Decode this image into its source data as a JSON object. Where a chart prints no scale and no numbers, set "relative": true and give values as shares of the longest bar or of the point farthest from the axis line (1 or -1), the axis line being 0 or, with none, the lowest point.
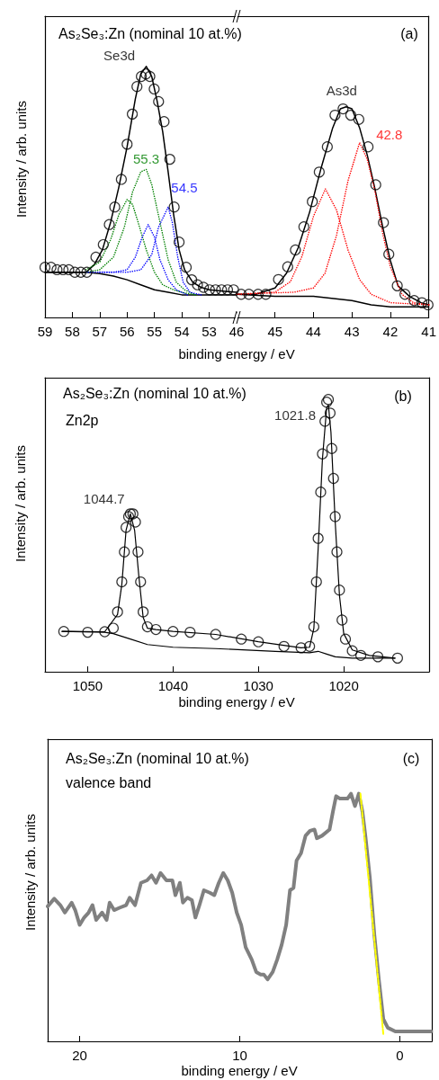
{
  "chart_data": [
    {
      "type": "line",
      "title": "As₂Se₃:Zn (nominal 10 at.%)",
      "xlabel": "binding energy / eV",
      "ylabel": "Intensity / arb. units",
      "relative": true,
      "xlim": [
        59,
        52
      ],
      "xticks": [
        59,
        58,
        57,
        56,
        55,
        54,
        53
      ],
      "annotations": [
        {
          "text": "Se3d",
          "x": 55.3,
          "y": 1.0
        },
        {
          "text": "55.3",
          "x": 55.3,
          "y": 0.59
        },
        {
          "text": "54.5",
          "x": 54.5,
          "y": 0.44
        }
      ],
      "series": [
        {
          "color": "#008000",
          "line_style": "dotted",
          "x": [
            57.5,
            57,
            56.6,
            56.3,
            56.0,
            55.8,
            55.6,
            55.3,
            55.0,
            54.7,
            54.3,
            54.0,
            53.5
          ],
          "values": [
            0.19,
            0.22,
            0.31,
            0.41,
            0.47,
            0.45,
            0.38,
            0.27,
            0.18,
            0.13,
            0.11,
            0.1,
            0.09
          ]
        },
        {
          "color": "#008000",
          "line_style": "dotted",
          "x": [
            57.5,
            57,
            56.5,
            56.1,
            55.8,
            55.5,
            55.3,
            55.1,
            54.8,
            54.5,
            54.2,
            53.9,
            53.5
          ],
          "values": [
            0.18,
            0.19,
            0.24,
            0.36,
            0.5,
            0.58,
            0.59,
            0.53,
            0.38,
            0.23,
            0.14,
            0.11,
            0.09
          ]
        },
        {
          "color": "#0000ff",
          "line_style": "dotted",
          "x": [
            57.5,
            56.5,
            56.0,
            55.7,
            55.45,
            55.23,
            55.0,
            54.8,
            54.5,
            54.2,
            53.8
          ],
          "values": [
            0.18,
            0.18,
            0.19,
            0.24,
            0.32,
            0.37,
            0.32,
            0.23,
            0.15,
            0.11,
            0.09
          ]
        },
        {
          "color": "#0000ff",
          "line_style": "dotted",
          "x": [
            57.0,
            56.0,
            55.5,
            55.1,
            54.85,
            54.5,
            54.35,
            54.15,
            53.95,
            53.7,
            53.3
          ],
          "values": [
            0.18,
            0.18,
            0.19,
            0.25,
            0.36,
            0.44,
            0.38,
            0.24,
            0.14,
            0.1,
            0.09
          ]
        },
        {
          "color": "#000000",
          "x": [
            59,
            57.5,
            57,
            56.5,
            56,
            55.5,
            55,
            54.5,
            54,
            53,
            52
          ],
          "values": [
            0.18,
            0.18,
            0.175,
            0.165,
            0.15,
            0.13,
            0.11,
            0.1,
            0.09,
            0.09,
            0.09
          ]
        },
        {
          "color": "#000000",
          "x": [
            59,
            58,
            57.5,
            57.2,
            56.9,
            56.6,
            56.3,
            56.0,
            55.7,
            55.5,
            55.3,
            55.1,
            54.9,
            54.7,
            54.5,
            54.3,
            54.1,
            53.9,
            53.6,
            53.3,
            53.0,
            52.5,
            52.0
          ],
          "values": [
            0.18,
            0.18,
            0.18,
            0.21,
            0.27,
            0.38,
            0.52,
            0.68,
            0.87,
            0.97,
            1.0,
            0.96,
            0.86,
            0.74,
            0.58,
            0.41,
            0.27,
            0.19,
            0.14,
            0.12,
            0.11,
            0.105,
            0.1
          ]
        },
        {
          "type": "scatter",
          "marker": "circle",
          "color": "#000000",
          "x": [
            59.0,
            58.78,
            58.56,
            58.34,
            58.13,
            57.91,
            57.69,
            57.47,
            57.14,
            56.87,
            56.65,
            56.45,
            56.21,
            56.0,
            55.81,
            55.64,
            55.48,
            55.31,
            55.17,
            55.01,
            54.85,
            54.65,
            54.44,
            54.28,
            54.1,
            53.84,
            53.64,
            53.43,
            53.21,
            52.99,
            52.77,
            52.55,
            52.33,
            52.11
          ],
          "values": [
            0.2,
            0.2,
            0.19,
            0.19,
            0.19,
            0.18,
            0.18,
            0.18,
            0.24,
            0.29,
            0.37,
            0.44,
            0.55,
            0.69,
            0.81,
            0.92,
            0.96,
            0.97,
            0.96,
            0.91,
            0.86,
            0.78,
            0.63,
            0.44,
            0.3,
            0.2,
            0.15,
            0.13,
            0.12,
            0.11,
            0.11,
            0.11,
            0.11,
            0.11
          ]
        }
      ]
    },
    {
      "type": "line",
      "relative": true,
      "xlim": [
        46,
        41
      ],
      "xticks": [
        46,
        45,
        44,
        43,
        42,
        41
      ],
      "annotations": [
        "(a)",
        {
          "text": "As3d",
          "x": 43.15,
          "y": 1.0
        },
        {
          "text": "42.8",
          "x": 42.8,
          "y": 0.83
        }
      ],
      "series": [
        {
          "color": "#ff0000",
          "line_style": "dotted",
          "x": [
            46,
            45,
            44.6,
            44.3,
            44.0,
            43.69,
            43.4,
            43.1,
            42.8,
            42.5,
            42,
            41
          ],
          "values": [
            0.11,
            0.12,
            0.17,
            0.29,
            0.48,
            0.61,
            0.51,
            0.32,
            0.18,
            0.11,
            0.07,
            0.06
          ]
        },
        {
          "color": "#ff0000",
          "line_style": "dotted",
          "x": [
            46,
            44.5,
            44,
            43.7,
            43.4,
            43.1,
            42.8,
            42.6,
            42.4,
            42.2,
            42.0,
            41.7,
            41.4,
            41
          ],
          "values": [
            0.11,
            0.12,
            0.14,
            0.21,
            0.39,
            0.65,
            0.83,
            0.75,
            0.6,
            0.4,
            0.24,
            0.11,
            0.07,
            0.06
          ]
        },
        {
          "color": "#000000",
          "x": [
            46,
            45,
            44,
            43,
            42.5,
            42,
            41
          ],
          "values": [
            0.11,
            0.1,
            0.1,
            0.08,
            0.06,
            0.05,
            0.05
          ]
        },
        {
          "color": "#000000",
          "x": [
            46,
            45.5,
            45,
            44.7,
            44.4,
            44.1,
            43.8,
            43.5,
            43.3,
            43.15,
            43.0,
            42.8,
            42.6,
            42.4,
            42.2,
            42.0,
            41.8,
            41.5,
            41.2,
            41
          ],
          "values": [
            0.11,
            0.11,
            0.14,
            0.21,
            0.33,
            0.5,
            0.71,
            0.9,
            0.99,
            1.0,
            0.99,
            0.9,
            0.77,
            0.61,
            0.43,
            0.27,
            0.15,
            0.1,
            0.07,
            0.06
          ]
        },
        {
          "type": "scatter",
          "marker": "circle",
          "color": "#000000",
          "x": [
            45.88,
            45.68,
            45.44,
            45.24,
            44.91,
            44.67,
            44.47,
            44.25,
            44.03,
            43.85,
            43.64,
            43.44,
            43.23,
            43.03,
            42.82,
            42.58,
            42.38,
            42.18,
            42.04,
            41.82,
            41.62,
            41.38,
            41.18,
            41.02
          ],
          "values": [
            0.11,
            0.11,
            0.11,
            0.11,
            0.18,
            0.24,
            0.32,
            0.43,
            0.55,
            0.69,
            0.81,
            0.96,
            0.99,
            0.96,
            0.94,
            0.81,
            0.63,
            0.45,
            0.3,
            0.15,
            0.11,
            0.08,
            0.07,
            0.06
          ]
        }
      ]
    },
    {
      "type": "line",
      "title": "As₂Se₃:Zn (nominal 10 at.%)",
      "xlabel": "binding energy / eV",
      "ylabel": "Intensity / arb. units",
      "relative": true,
      "xlim": [
        1055,
        1010
      ],
      "xticks": [
        1050,
        1040,
        1030,
        1020
      ],
      "annotations": [
        "Zn2p",
        "(b)",
        {
          "text": "1044.7",
          "x": 1044.7,
          "y": 0.58
        },
        {
          "text": "1021.8",
          "x": 1021.8,
          "y": 1.0
        }
      ],
      "series": [
        {
          "color": "#000000",
          "x": [
            1053,
            1048,
            1047,
            1046,
            1045,
            1043,
            1040,
            1035,
            1028,
            1024,
            1023,
            1022,
            1021,
            1019,
            1014
          ],
          "values": [
            0.148,
            0.145,
            0.14,
            0.13,
            0.12,
            0.1,
            0.09,
            0.085,
            0.075,
            0.07,
            0.075,
            0.065,
            0.055,
            0.05,
            0.05
          ]
        },
        {
          "color": "#000000",
          "x": [
            1053,
            1048,
            1046.5,
            1046,
            1045.5,
            1045,
            1044.5,
            1044,
            1043.5,
            1043,
            1042,
            1040,
            1035,
            1030,
            1025,
            1024,
            1023.5,
            1023,
            1022.5,
            1022,
            1021.8,
            1021.5,
            1021,
            1020.5,
            1020,
            1019,
            1017,
            1014
          ],
          "values": [
            0.148,
            0.147,
            0.21,
            0.32,
            0.52,
            0.58,
            0.52,
            0.35,
            0.2,
            0.16,
            0.155,
            0.148,
            0.137,
            0.11,
            0.088,
            0.09,
            0.16,
            0.45,
            0.78,
            0.97,
            0.98,
            0.88,
            0.55,
            0.28,
            0.14,
            0.08,
            0.06,
            0.05
          ]
        },
        {
          "type": "scatter",
          "marker": "circle",
          "color": "#000000",
          "x": [
            1052.8,
            1050,
            1048,
            1047,
            1046.5,
            1046,
            1045.7,
            1045.5,
            1045.2,
            1045,
            1044.7,
            1044.4,
            1044.1,
            1043.8,
            1043.5,
            1043,
            1042,
            1040,
            1038,
            1035,
            1032,
            1030,
            1027,
            1025,
            1024,
            1023.5,
            1023.2,
            1023,
            1022.7,
            1022.5,
            1022.2,
            1022,
            1021.8,
            1021.6,
            1021.4,
            1021.2,
            1021,
            1020.8,
            1020.5,
            1020.2,
            1019.8,
            1019,
            1018,
            1016,
            1013.7
          ],
          "values": [
            0.148,
            0.145,
            0.147,
            0.16,
            0.22,
            0.33,
            0.44,
            0.53,
            0.57,
            0.58,
            0.58,
            0.55,
            0.44,
            0.33,
            0.22,
            0.165,
            0.155,
            0.148,
            0.145,
            0.137,
            0.12,
            0.11,
            0.093,
            0.088,
            0.093,
            0.165,
            0.33,
            0.49,
            0.66,
            0.8,
            0.92,
            0.99,
            1.0,
            0.95,
            0.82,
            0.71,
            0.57,
            0.44,
            0.3,
            0.19,
            0.12,
            0.077,
            0.06,
            0.055,
            0.05
          ]
        }
      ]
    },
    {
      "type": "line",
      "title": "As₂Se₃:Zn (nominal 10 at.%)",
      "xlabel": "binding energy / eV",
      "ylabel": "Intensity / arb. units",
      "relative": true,
      "xlim": [
        22,
        -2
      ],
      "xticks": [
        20,
        10,
        0
      ],
      "annotations": [
        "valence band",
        "(c)"
      ],
      "series": [
        {
          "color": "#808080",
          "x": [
            22.0,
            21.59,
            21.21,
            20.93,
            20.5,
            20.28,
            20.0,
            19.72,
            19.44,
            19.2,
            18.97,
            18.6,
            18.32,
            18.13,
            17.85,
            17.48,
            17.1,
            16.88,
            16.54,
            16.17,
            15.79,
            15.51,
            15.23,
            14.95,
            14.58,
            14.21,
            14.02,
            13.74,
            13.55,
            13.27,
            12.99,
            12.77,
            12.52,
            12.24,
            11.87,
            11.59,
            11.31,
            11.03,
            10.75,
            10.47,
            10.19,
            9.91,
            9.63,
            9.25,
            8.97,
            8.69,
            8.5,
            8.26,
            7.94,
            7.66,
            7.38,
            7.1,
            6.86,
            6.64,
            6.45,
            6.17,
            5.89,
            5.61,
            5.33,
            5.18,
            4.86,
            4.39,
            4.17,
            3.98,
            3.74,
            3.5,
            3.27,
            3.05,
            2.8,
            2.56,
            2.34,
            2.15,
            1.87,
            1.59,
            1.31,
            1.03,
            0.75,
            0.28,
            -0.46,
            -1.21,
            -1.96
          ],
          "values": [
            0.545,
            0.576,
            0.55,
            0.52,
            0.56,
            0.53,
            0.47,
            0.5,
            0.52,
            0.55,
            0.49,
            0.52,
            0.49,
            0.56,
            0.53,
            0.54,
            0.55,
            0.58,
            0.55,
            0.64,
            0.65,
            0.67,
            0.64,
            0.68,
            0.65,
            0.65,
            0.59,
            0.64,
            0.56,
            0.58,
            0.57,
            0.5,
            0.55,
            0.61,
            0.6,
            0.59,
            0.64,
            0.68,
            0.65,
            0.6,
            0.52,
            0.47,
            0.38,
            0.33,
            0.28,
            0.27,
            0.27,
            0.25,
            0.28,
            0.33,
            0.39,
            0.47,
            0.61,
            0.62,
            0.73,
            0.76,
            0.83,
            0.85,
            0.855,
            0.82,
            0.83,
            0.855,
            0.93,
            0.99,
            0.98,
            0.98,
            0.98,
            1.0,
            0.95,
            1.0,
            0.93,
            0.83,
            0.66,
            0.43,
            0.25,
            0.09,
            0.055,
            0.04,
            0.04,
            0.04,
            0.04
          ]
        },
        {
          "color": "#ffff00",
          "line_style": "dashed",
          "x": [
            2.46,
            1.03
          ],
          "values": [
            1.0,
            0.03
          ]
        }
      ]
    }
  ]
}
